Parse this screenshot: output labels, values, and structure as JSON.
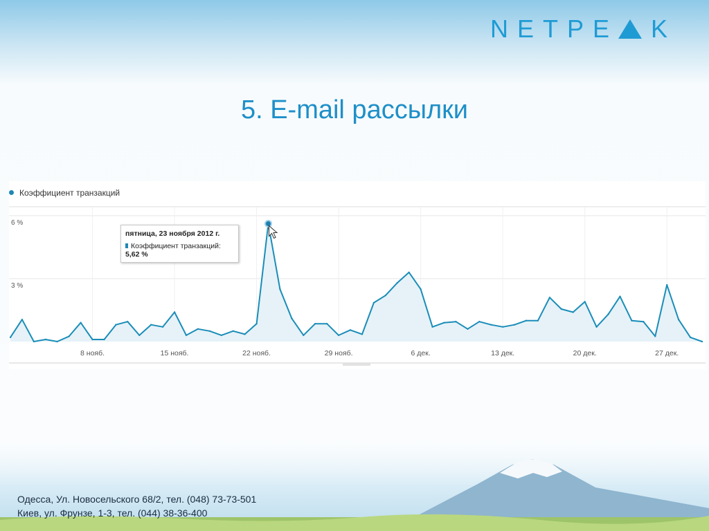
{
  "header": {
    "logo_text_left": "NETPE",
    "logo_text_right": "K"
  },
  "slide": {
    "title": "5.  E-mail рассылки"
  },
  "tooltip": {
    "date": "пятница, 23 ноября 2012 г.",
    "metric": "Коэффициент транзакций:",
    "value": "5,62 %"
  },
  "footer": {
    "line1": "Одесса, Ул. Новосельского 68/2, тел. (048) 73-73-501",
    "line2": "Киев, ул. Фрунзе, 1-3, тел. (044) 38-36-400"
  },
  "colors": {
    "accent": "#1f9bd4",
    "series_line": "#1a8db8",
    "series_fill": "#e6f2f8"
  },
  "chart_data": {
    "type": "area",
    "title": "",
    "xlabel": "",
    "ylabel": "",
    "legend": "top-left",
    "grid": true,
    "series": [
      {
        "name": "Коэффициент транзакций",
        "values": [
          0.2,
          1.05,
          0.0,
          0.1,
          0.0,
          0.25,
          0.9,
          0.1,
          0.1,
          0.8,
          0.95,
          0.3,
          0.8,
          0.7,
          1.4,
          0.3,
          0.6,
          0.5,
          0.3,
          0.5,
          0.35,
          0.85,
          5.62,
          2.5,
          1.1,
          0.3,
          0.85,
          0.85,
          0.3,
          0.55,
          0.35,
          1.85,
          2.2,
          2.8,
          3.3,
          2.5,
          0.7,
          0.9,
          0.95,
          0.6,
          0.95,
          0.8,
          0.7,
          0.8,
          1.0,
          1.0,
          2.1,
          1.55,
          1.4,
          1.9,
          0.7,
          1.3,
          2.15,
          1.0,
          0.95,
          0.25,
          2.7,
          1.05,
          0.2,
          0.0
        ]
      }
    ],
    "y_ticks": [
      "6 %",
      "3 %"
    ],
    "y_tick_values": [
      6,
      3
    ],
    "ylim": [
      0,
      6
    ],
    "x_ticks": [
      "8 нояб.",
      "15 нояб.",
      "22 нояб.",
      "29 нояб.",
      "6 дек.",
      "13 дек.",
      "20 дек.",
      "27 дек."
    ],
    "x_tick_index": [
      7,
      14,
      21,
      28,
      35,
      42,
      49,
      56
    ],
    "highlight_index": 22
  }
}
